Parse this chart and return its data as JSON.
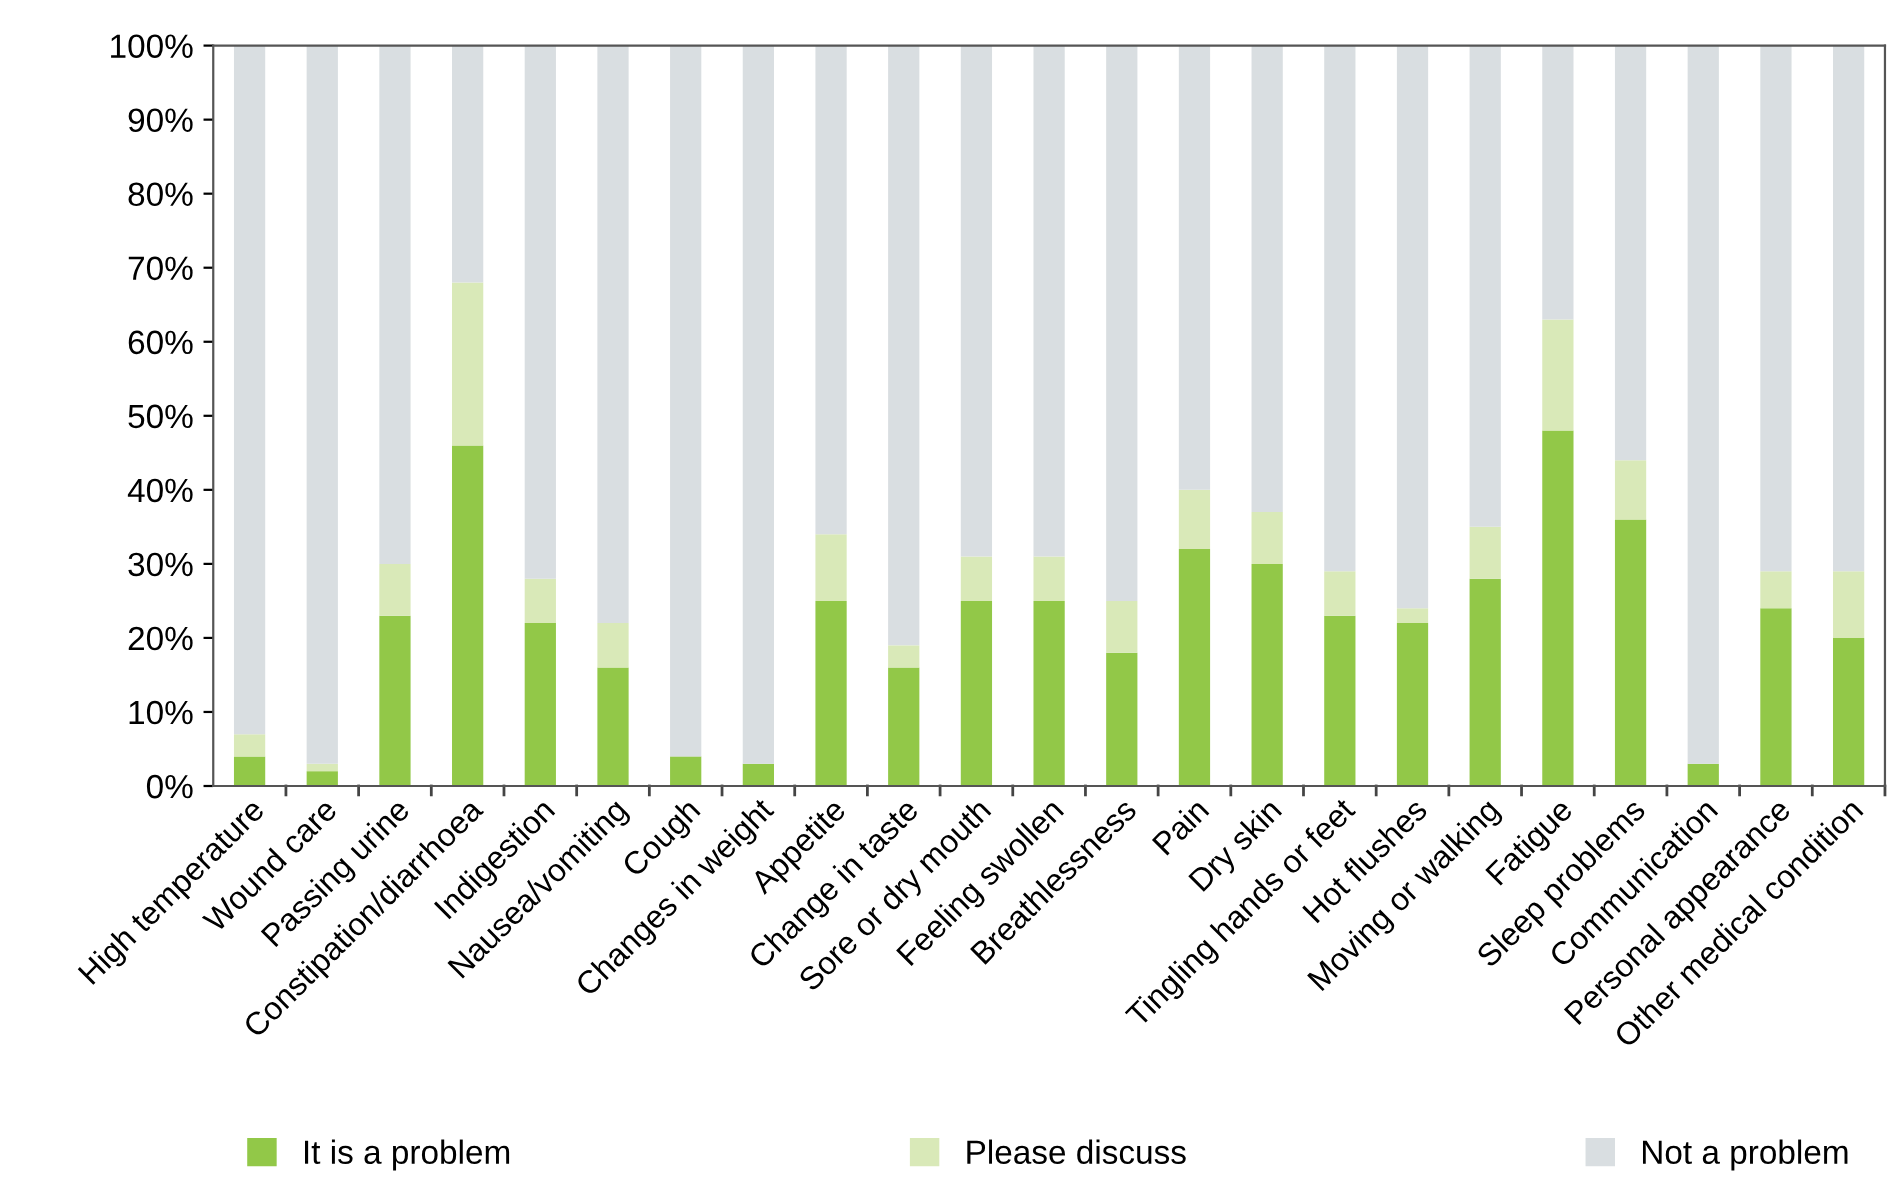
{
  "chart_data": {
    "type": "bar",
    "stacked": true,
    "categories": [
      "High temperature",
      "Wound care",
      "Passing urine",
      "Constipation/diarrhoea",
      "Indigestion",
      "Nausea/vomiting",
      "Cough",
      "Changes in weight",
      "Appetite",
      "Change in taste",
      "Sore or dry mouth",
      "Feeling swollen",
      "Breathlessness",
      "Pain",
      "Dry skin",
      "Tingling hands or feet",
      "Hot flushes",
      "Moving or walking",
      "Fatigue",
      "Sleep problems",
      "Communication",
      "Personal appearance",
      "Other medical condition"
    ],
    "series": [
      {
        "name": "It is a problem",
        "color": "#92c848",
        "values": [
          4,
          2,
          23,
          46,
          22,
          16,
          4,
          3,
          25,
          16,
          25,
          25,
          18,
          32,
          30,
          23,
          22,
          28,
          48,
          36,
          3,
          24,
          20
        ]
      },
      {
        "name": "Please discuss",
        "color": "#d9e9b8",
        "values": [
          3,
          1,
          7,
          22,
          6,
          6,
          0,
          0,
          9,
          3,
          6,
          6,
          7,
          8,
          7,
          6,
          2,
          7,
          15,
          8,
          0,
          5,
          9
        ]
      },
      {
        "name": "Not a problem",
        "color": "#d9dee1",
        "values": [
          93,
          97,
          70,
          32,
          72,
          78,
          96,
          97,
          66,
          81,
          69,
          69,
          75,
          60,
          63,
          71,
          76,
          65,
          37,
          56,
          97,
          71,
          71
        ]
      }
    ],
    "ylim": [
      0,
      100
    ],
    "yticks": [
      {
        "value": 0,
        "label": "0%"
      },
      {
        "value": 10,
        "label": "10%"
      },
      {
        "value": 20,
        "label": "20%"
      },
      {
        "value": 30,
        "label": "30%"
      },
      {
        "value": 40,
        "label": "40%"
      },
      {
        "value": 50,
        "label": "50%"
      },
      {
        "value": 60,
        "label": "60%"
      },
      {
        "value": 70,
        "label": "70%"
      },
      {
        "value": 80,
        "label": "80%"
      },
      {
        "value": 90,
        "label": "90%"
      },
      {
        "value": 100,
        "label": "100%"
      }
    ],
    "grid": false,
    "legend": "bottom"
  }
}
